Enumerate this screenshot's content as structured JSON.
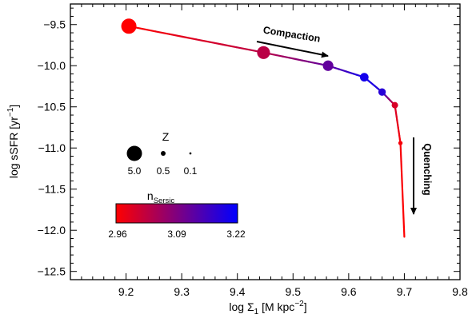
{
  "chart_data": {
    "type": "line",
    "xlabel": "log Σ",
    "xlabel_sub": "1",
    "xlabel_unit": " [M kpc",
    "xlabel_sup": "−2",
    "xlabel_close": "]",
    "ylabel": "log sSFR [yr",
    "ylabel_sup": "−1",
    "ylabel_close": "]",
    "xlim": [
      9.1,
      9.8
    ],
    "ylim": [
      -12.6,
      -9.25
    ],
    "xticks": [
      9.2,
      9.3,
      9.4,
      9.5,
      9.6,
      9.7,
      9.8
    ],
    "xtick_labels": [
      "9.2",
      "9.3",
      "9.4",
      "9.5",
      "9.6",
      "9.7",
      "9.8"
    ],
    "yticks": [
      -9.5,
      -10.0,
      -10.5,
      -11.0,
      -11.5,
      -12.0,
      -12.5
    ],
    "ytick_labels": [
      "−9.5",
      "−10.0",
      "−10.5",
      "−11.0",
      "−11.5",
      "−12.0",
      "−12.5"
    ],
    "track": [
      {
        "x": 9.205,
        "y": -9.52,
        "n": 2.96
      },
      {
        "x": 9.447,
        "y": -9.84,
        "n": 3.03
      },
      {
        "x": 9.563,
        "y": -10.0,
        "n": 3.12
      },
      {
        "x": 9.628,
        "y": -10.14,
        "n": 3.2
      },
      {
        "x": 9.66,
        "y": -10.32,
        "n": 3.18
      },
      {
        "x": 9.683,
        "y": -10.48,
        "n": 3.0
      },
      {
        "x": 9.693,
        "y": -10.94,
        "n": 2.97
      },
      {
        "x": 9.7,
        "y": -12.08,
        "n": 2.96
      }
    ],
    "markers": [
      {
        "x": 9.205,
        "y": -9.52,
        "z": 5.0,
        "n": 2.96
      },
      {
        "x": 9.447,
        "y": -9.84,
        "z": 3.6,
        "n": 3.03
      },
      {
        "x": 9.563,
        "y": -10.0,
        "z": 2.4,
        "n": 3.12
      },
      {
        "x": 9.628,
        "y": -10.14,
        "z": 1.6,
        "n": 3.2
      },
      {
        "x": 9.66,
        "y": -10.32,
        "z": 1.2,
        "n": 3.18
      },
      {
        "x": 9.683,
        "y": -10.48,
        "z": 0.9,
        "n": 3.0
      },
      {
        "x": 9.693,
        "y": -10.94,
        "z": 0.4,
        "n": 2.97
      }
    ],
    "size_legend": {
      "title": "Z",
      "entries": [
        {
          "label": "5.0",
          "z": 5.0
        },
        {
          "label": "0.5",
          "z": 0.5
        },
        {
          "label": "0.1",
          "z": 0.1
        }
      ]
    },
    "colorbar": {
      "title": "n",
      "title_sub": "Sersic",
      "min": 2.96,
      "max": 3.22,
      "tick_labels": [
        "2.96",
        "3.09",
        "3.22"
      ],
      "colors": [
        "#ff0000",
        "#0000ff"
      ]
    },
    "annotations": {
      "compaction": "Compaction",
      "quenching": "Quenching"
    }
  }
}
